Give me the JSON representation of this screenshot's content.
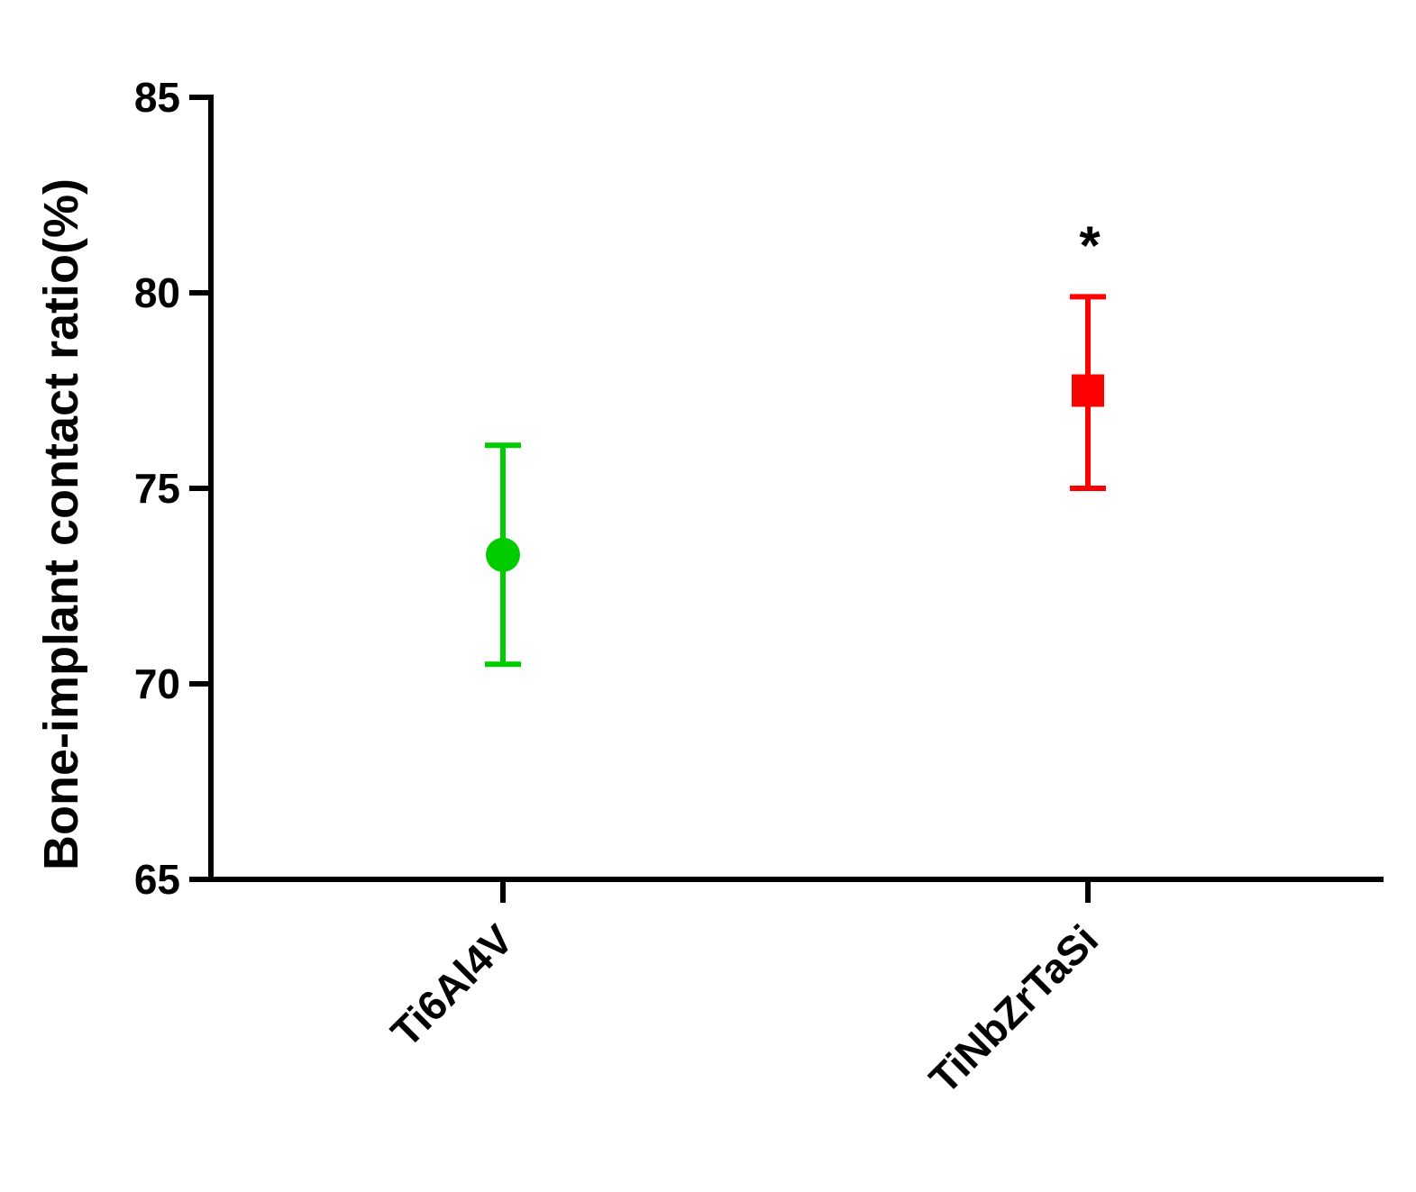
{
  "chart_data": {
    "type": "scatter",
    "title": "",
    "xlabel": "",
    "ylabel": "Bone-implant contact ratio(%)",
    "ylim": [
      65,
      85
    ],
    "yticks": [
      "65",
      "70",
      "75",
      "80",
      "85"
    ],
    "categories": [
      "Ti6Al4V",
      "TiNbZrTaSi"
    ],
    "grid": false,
    "legend": "none",
    "series": [
      {
        "category": "Ti6Al4V",
        "mean": 73.3,
        "error_low": 70.5,
        "error_high": 76.1,
        "marker": "circle",
        "color": "#00cc00"
      },
      {
        "category": "TiNbZrTaSi",
        "mean": 77.5,
        "error_low": 75.0,
        "error_high": 79.9,
        "marker": "square",
        "color": "#ff0000"
      }
    ],
    "annotations": [
      {
        "category": "TiNbZrTaSi",
        "text": "*"
      }
    ]
  }
}
